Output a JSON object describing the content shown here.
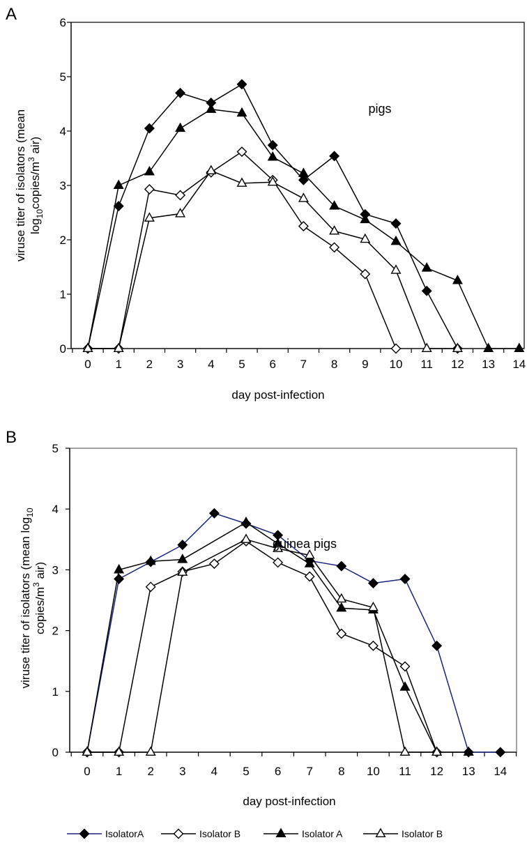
{
  "chart_data": [
    {
      "panel": "A",
      "type": "line",
      "annotation": "pigs",
      "xlabel": "day post-infection",
      "ylabel_line1": "viruse titer of isolators (mean",
      "ylabel_line2_pre": "log",
      "ylabel_line2_sub": "10",
      "ylabel_line2_mid": "copies/m",
      "ylabel_line2_sup": "3",
      "ylabel_line2_post": " air)",
      "categories": [
        "0",
        "1",
        "2",
        "3",
        "4",
        "5",
        "6",
        "7",
        "8",
        "9",
        "10",
        "11",
        "12",
        "13",
        "14"
      ],
      "yticks": [
        "0",
        "1",
        "2",
        "3",
        "4",
        "5",
        "6"
      ],
      "ylim": [
        0,
        6
      ],
      "grid": false,
      "series": [
        {
          "marker": "diamond-filled",
          "values": [
            0,
            2.62,
            4.05,
            4.7,
            4.52,
            4.86,
            3.74,
            3.1,
            3.54,
            2.47,
            2.3,
            1.06,
            0,
            null,
            null
          ]
        },
        {
          "marker": "diamond-open",
          "values": [
            0,
            0,
            2.93,
            2.82,
            3.24,
            3.62,
            3.1,
            2.25,
            1.86,
            1.37,
            0,
            null,
            null,
            null,
            null
          ]
        },
        {
          "marker": "triangle-filled",
          "values": [
            0,
            3.0,
            3.25,
            4.05,
            4.4,
            4.33,
            3.52,
            3.22,
            2.62,
            2.37,
            1.97,
            1.48,
            1.25,
            0,
            0
          ]
        },
        {
          "marker": "triangle-open",
          "values": [
            0,
            0,
            2.4,
            2.48,
            3.27,
            3.04,
            3.06,
            2.76,
            2.16,
            2.01,
            1.44,
            0,
            0,
            null,
            null
          ]
        }
      ]
    },
    {
      "panel": "B",
      "type": "line",
      "annotation": "guinea pigs",
      "xlabel": "day post-infection",
      "ylabel_line1_pre": "viruse titer of isolators (mean log",
      "ylabel_line1_sub": "10",
      "ylabel_line2_pre": "copies/m",
      "ylabel_line2_sup": "3",
      "ylabel_line2_post": " air)",
      "categories": [
        "0",
        "1",
        "2",
        "3",
        "4",
        "5",
        "6",
        "7",
        "8",
        "10",
        "11",
        "12",
        "13",
        "14"
      ],
      "yticks": [
        "0",
        "1",
        "2",
        "3",
        "4",
        "5"
      ],
      "ylim": [
        0,
        5
      ],
      "grid": false,
      "series": [
        {
          "name": "IsolatorA",
          "marker": "diamond-filled",
          "color": "#1a237e",
          "values": [
            0,
            2.85,
            3.13,
            3.41,
            3.93,
            3.76,
            3.57,
            3.15,
            3.06,
            2.78,
            2.85,
            1.75,
            0,
            0
          ]
        },
        {
          "name": "Isolator B",
          "marker": "diamond-open",
          "color": "#000000",
          "values": [
            0,
            0,
            2.72,
            2.97,
            3.1,
            3.47,
            3.12,
            2.89,
            1.95,
            1.75,
            1.41,
            0,
            null,
            null
          ]
        },
        {
          "name": "Isolator A",
          "marker": "triangle-filled",
          "color": "#000000",
          "values": [
            0,
            3.0,
            3.14,
            3.17,
            null,
            3.78,
            3.43,
            3.1,
            2.37,
            2.34,
            1.07,
            0,
            0,
            null
          ]
        },
        {
          "name": "Isolator B",
          "marker": "triangle-open",
          "color": "#000000",
          "values": [
            0,
            0,
            0,
            2.96,
            null,
            3.5,
            3.35,
            3.24,
            2.52,
            2.38,
            0,
            0,
            null,
            null
          ]
        }
      ]
    }
  ]
}
